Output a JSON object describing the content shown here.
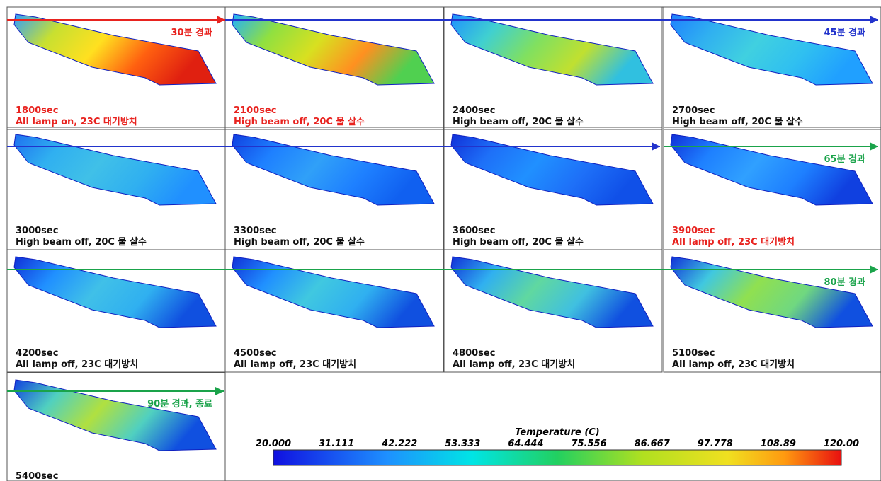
{
  "cells": [
    {
      "time": "1800sec",
      "description": "All lamp on, 23C 대기방치",
      "color": "#e8231f"
    },
    {
      "time": "2100sec",
      "description": "High beam off, 20C 물 살수",
      "color": "#e8231f"
    },
    {
      "time": "2400sec",
      "description": "High beam off, 20C 물 살수",
      "color": "#111111"
    },
    {
      "time": "2700sec",
      "description": "High beam off, 20C 물 살수",
      "color": "#111111"
    },
    {
      "time": "3000sec",
      "description": "High beam off, 20C 물 살수",
      "color": "#111111"
    },
    {
      "time": "3300sec",
      "description": "High beam off, 20C 물 살수",
      "color": "#111111"
    },
    {
      "time": "3600sec",
      "description": "High beam off, 20C 물 살수",
      "color": "#111111"
    },
    {
      "time": "3900sec",
      "description": "All lamp off, 23C 대기방치",
      "color": "#e8231f"
    },
    {
      "time": "4200sec",
      "description": "All lamp off, 23C 대기방치",
      "color": "#111111"
    },
    {
      "time": "4500sec",
      "description": "All lamp off, 23C 대기방치",
      "color": "#111111"
    },
    {
      "time": "4800sec",
      "description": "All lamp off, 23C 대기방치",
      "color": "#111111"
    },
    {
      "time": "5100sec",
      "description": "All lamp off, 23C 대기방치",
      "color": "#111111"
    },
    {
      "time": "5400sec",
      "color": "#111111"
    }
  ],
  "arrows": [
    {
      "label": "30분 경과",
      "color": "#e8231f"
    },
    {
      "label": "45분 경과",
      "color": "#2233cc"
    },
    {
      "color": "#2233cc"
    },
    {
      "label": "65분 경과",
      "color": "#1aa34a"
    },
    {
      "label": "80분 경과",
      "color": "#1aa34a"
    },
    {
      "label": "90분 경과, 종료",
      "color": "#1aa34a"
    }
  ],
  "colorbar": {
    "title": "Temperature (C)",
    "ticks": [
      "20.000",
      "31.111",
      "42.222",
      "53.333",
      "64.444",
      "75.556",
      "86.667",
      "97.778",
      "108.89",
      "120.00"
    ]
  }
}
